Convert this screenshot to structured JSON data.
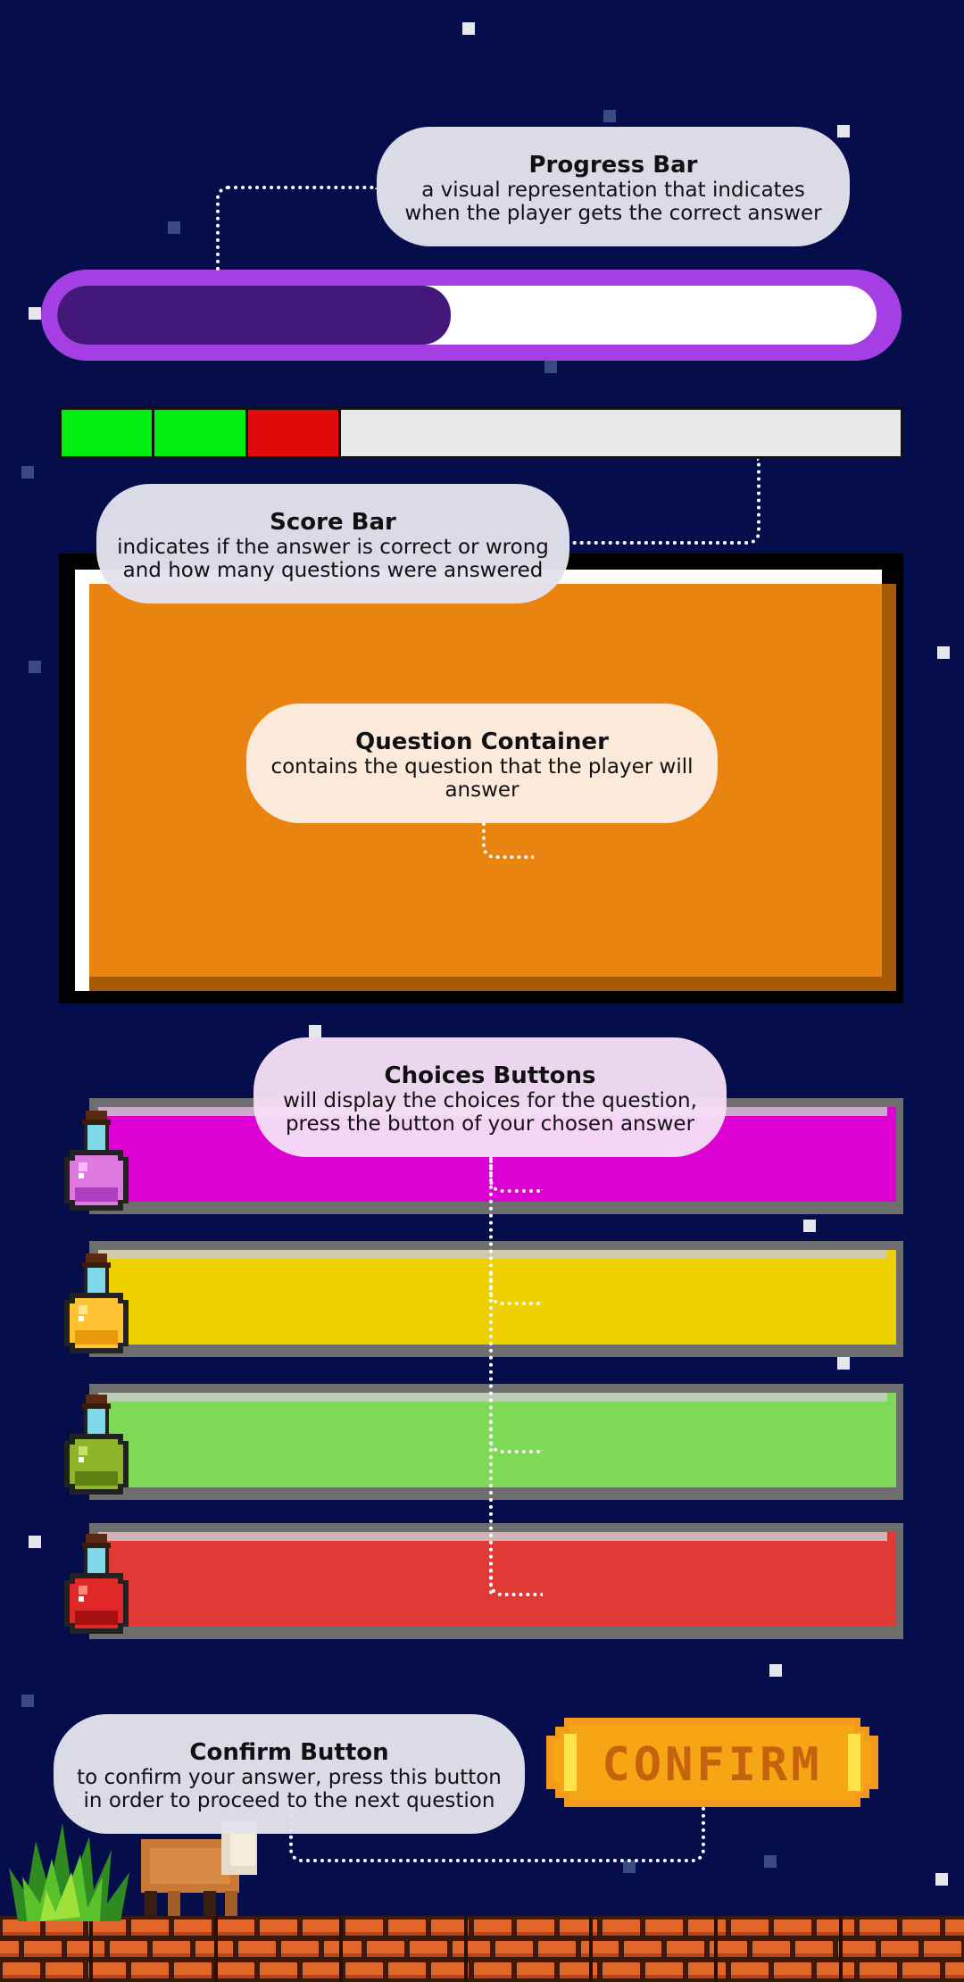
{
  "progress": {
    "fraction": 0.48,
    "callout_title": "Progress Bar",
    "callout_desc_line1": "a visual representation that indicates",
    "callout_desc_line2": "when the player gets the correct answer"
  },
  "score_bar": {
    "segments": [
      "correct",
      "correct",
      "wrong"
    ],
    "total_slots": 9,
    "colors": {
      "correct": "#00ee10",
      "wrong": "#e00a0a",
      "empty": "#e8e8e8"
    },
    "callout_title": "Score Bar",
    "callout_desc_line1": "indicates if the answer is correct or wrong",
    "callout_desc_line2": "and how many questions were answered"
  },
  "question": {
    "callout_title": "Question Container",
    "callout_desc_line1": "contains the question that the player will",
    "callout_desc_line2": "answer"
  },
  "choices": {
    "callout_title": "Choices Buttons",
    "callout_desc_line1": "will display the choices for the question,",
    "callout_desc_line2": "press the button of your chosen answer",
    "buttons": [
      {
        "color": "#dc00d2",
        "potion": "pink-potion-icon"
      },
      {
        "color": "#edd000",
        "potion": "yellow-potion-icon"
      },
      {
        "color": "#7ed957",
        "potion": "green-potion-icon"
      },
      {
        "color": "#e03a36",
        "potion": "red-potion-icon"
      }
    ]
  },
  "confirm": {
    "label": "CONFIRM",
    "callout_title": "Confirm Button",
    "callout_desc_line1": "to confirm your answer, press this button",
    "callout_desc_line2": "in order to proceed to the next question"
  }
}
